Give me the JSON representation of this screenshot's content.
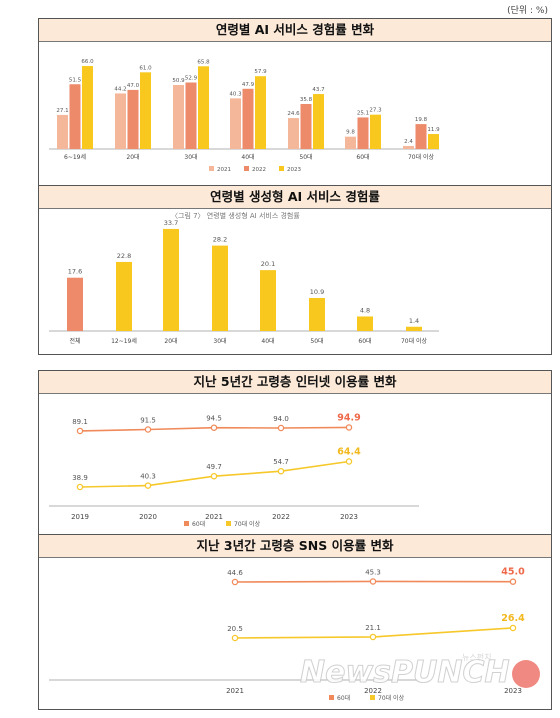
{
  "unit_label": "(단위 : %)",
  "colors": {
    "y2021": "#f4b79a",
    "y2022": "#ec8a6a",
    "y2023": "#f8c81e",
    "total": "#ee8a6a",
    "line60": "#f08a5a",
    "line70": "#f6c82a",
    "hi60": "#ee6a4a",
    "hi70": "#f2b81e"
  },
  "watermark": {
    "brand": "NewsPUNCH",
    "korean": "뉴스펀치",
    "sub": "NEWSPUNCH"
  },
  "chart_data": [
    {
      "type": "bar",
      "title": "연령별 AI 서비스 경험률 변화",
      "categories": [
        "6~19세",
        "20대",
        "30대",
        "40대",
        "50대",
        "60대",
        "70대 이상"
      ],
      "series": [
        {
          "name": "2021",
          "values": [
            27.1,
            44.2,
            50.9,
            40.3,
            24.6,
            9.8,
            2.4
          ]
        },
        {
          "name": "2022",
          "values": [
            51.5,
            47.0,
            52.9,
            47.9,
            35.8,
            25.1,
            19.8
          ]
        },
        {
          "name": "2023",
          "values": [
            66.0,
            61.0,
            65.8,
            57.9,
            43.7,
            27.3,
            11.9
          ]
        }
      ],
      "value_labels": {
        "2021": [
          "27.1",
          "44.2",
          "50.9",
          "40.3",
          "24.6",
          "9.8",
          "2.4"
        ],
        "2022": [
          "51.5",
          "47.0",
          "52.9",
          "47.9",
          "35.8",
          "25.1",
          "19.8"
        ],
        "2023": [
          "66.0",
          "61.0",
          "65.8",
          "57.9",
          "43.7",
          "27.3",
          "11.9"
        ]
      },
      "legend": [
        "2021",
        "2022",
        "2023"
      ],
      "legend_position": "bottom",
      "ylim": [
        0,
        70
      ],
      "grid": false
    },
    {
      "type": "bar",
      "title": "연령별 생성형 AI 서비스 경험률",
      "subtitle": "〈그림 7〉 연령별 생성형 AI 서비스 경험률",
      "categories": [
        "전체",
        "12~19세",
        "20대",
        "30대",
        "40대",
        "50대",
        "60대",
        "70대 이상"
      ],
      "values": [
        17.6,
        22.8,
        33.7,
        28.2,
        20.1,
        10.9,
        4.8,
        1.4
      ],
      "value_labels": [
        "17.6",
        "22.8",
        "33.7",
        "28.2",
        "20.1",
        "10.9",
        "4.8",
        "1.4"
      ],
      "ylim": [
        0,
        35
      ],
      "grid": false
    },
    {
      "type": "line",
      "title": "지난 5년간 고령층 인터넷 이용률 변화",
      "x": [
        "2019",
        "2020",
        "2021",
        "2022",
        "2023"
      ],
      "series": [
        {
          "name": "60대",
          "values": [
            89.1,
            91.5,
            94.5,
            94.0,
            94.9
          ],
          "labels": [
            "89.1",
            "91.5",
            "94.5",
            "94.0",
            "94.9"
          ]
        },
        {
          "name": "70대 이상",
          "values": [
            38.9,
            40.3,
            49.7,
            54.7,
            64.4
          ],
          "labels": [
            "38.9",
            "40.3",
            "49.7",
            "54.7",
            "64.4"
          ]
        }
      ],
      "legend_position": "bottom",
      "grid": false
    },
    {
      "type": "line",
      "title": "지난 3년간 고령층 SNS 이용률 변화",
      "x": [
        "2021",
        "2022",
        "2023"
      ],
      "series": [
        {
          "name": "60대",
          "values": [
            44.6,
            45.3,
            45.0
          ],
          "labels": [
            "44.6",
            "45.3",
            "45.0"
          ]
        },
        {
          "name": "70대 이상",
          "values": [
            20.5,
            21.1,
            26.4
          ],
          "labels": [
            "20.5",
            "21.1",
            "26.4"
          ]
        }
      ],
      "legend_position": "bottom",
      "grid": false
    }
  ]
}
